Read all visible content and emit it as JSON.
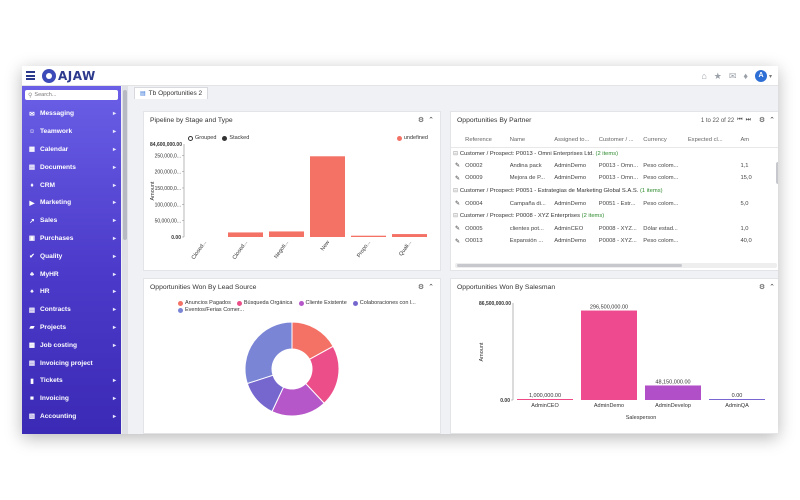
{
  "header": {
    "app_name": "AJAW",
    "avatar_letter": "A",
    "icons": [
      "home-icon",
      "star-icon",
      "mail-icon",
      "bell-icon",
      "user-avatar"
    ]
  },
  "sidebar": {
    "search_placeholder": "Search...",
    "items": [
      {
        "label": "Messaging",
        "icon": "message-icon"
      },
      {
        "label": "Teamwork",
        "icon": "team-icon"
      },
      {
        "label": "Calendar",
        "icon": "calendar-icon"
      },
      {
        "label": "Documents",
        "icon": "document-icon"
      },
      {
        "label": "CRM",
        "icon": "crm-icon"
      },
      {
        "label": "Marketing",
        "icon": "megaphone-icon"
      },
      {
        "label": "Sales",
        "icon": "chart-icon"
      },
      {
        "label": "Purchases",
        "icon": "cart-icon"
      },
      {
        "label": "Quality",
        "icon": "check-icon"
      },
      {
        "label": "MyHR",
        "icon": "person-icon"
      },
      {
        "label": "HR",
        "icon": "people-icon"
      },
      {
        "label": "Contracts",
        "icon": "contract-icon"
      },
      {
        "label": "Projects",
        "icon": "folder-icon"
      },
      {
        "label": "Job costing",
        "icon": "calculator-icon"
      },
      {
        "label": "Invoicing project",
        "icon": "invoice-icon"
      },
      {
        "label": "Tickets",
        "icon": "ticket-icon"
      },
      {
        "label": "Invoicing",
        "icon": "money-icon"
      },
      {
        "label": "Accounting",
        "icon": "ledger-icon"
      }
    ]
  },
  "tab": {
    "label": "Tb Opportunities 2"
  },
  "pipeline": {
    "title": "Pipeline by Stage and Type",
    "legend": {
      "grouped": "Grouped",
      "stacked": "Stacked",
      "series": "undefined"
    },
    "series_color": "#f47166"
  },
  "partner": {
    "title": "Opportunities By Partner",
    "pager": "1 to 22 of 22",
    "columns": [
      "Reference",
      "Name",
      "Assigned to...",
      "Customer / ...",
      "Currency",
      "Expected cl...",
      "Am"
    ],
    "rows": [
      {
        "type": "group",
        "label": "Customer / Prospect: P0013 - Omni Enterprises Ltd.",
        "count": "(2 items)"
      },
      {
        "type": "row",
        "cells": [
          "O0002",
          "Andina pack",
          "AdminDemo",
          "P0013 - Omn...",
          "Peso colom...",
          "",
          "1,1"
        ]
      },
      {
        "type": "row",
        "cells": [
          "O0009",
          "Mejora de P...",
          "AdminDemo",
          "P0013 - Omn...",
          "Peso colom...",
          "",
          "15,0"
        ]
      },
      {
        "type": "group",
        "label": "Customer / Prospect: P0051 - Estrategias de Marketing Global S.A.S.",
        "count": "(1 items)"
      },
      {
        "type": "row",
        "cells": [
          "O0004",
          "Campaña di...",
          "AdminDemo",
          "P0051 - Estr...",
          "Peso colom...",
          "",
          "5,0"
        ]
      },
      {
        "type": "group",
        "label": "Customer / Prospect: P0008 - XYZ Enterprises",
        "count": "(2 items)"
      },
      {
        "type": "row",
        "cells": [
          "O0005",
          "clientes pot...",
          "AdminCEO",
          "P0008 - XYZ...",
          "Dólar estad...",
          "",
          "1,0"
        ]
      },
      {
        "type": "row",
        "cells": [
          "O0013",
          "Expansión ...",
          "AdminDemo",
          "P0008 - XYZ...",
          "Peso colom...",
          "",
          "40,0"
        ]
      }
    ]
  },
  "lead_source": {
    "title": "Opportunities Won By Lead Source"
  },
  "salesman": {
    "title": "Opportunities Won By Salesman"
  },
  "chart_data": [
    {
      "type": "bar",
      "title": "Pipeline by Stage and Type",
      "xlabel": "",
      "ylabel": "Amount",
      "ymax_label": "84,600,000.00",
      "categories": [
        "Closed...",
        "Closed...",
        "Negoti...",
        "New",
        "Propo...",
        "Quali..."
      ],
      "values": [
        0,
        14000000,
        17000000,
        247000000,
        4000000,
        9000000
      ],
      "ylim": [
        0,
        284600000
      ],
      "yticks": [
        0,
        50000000,
        100000000,
        150000000,
        200000000,
        250000000
      ],
      "ytick_labels": [
        "0.00",
        "50,000,00...",
        "100,000,0...",
        "150,000,0...",
        "200,000,0...",
        "250,000,0..."
      ],
      "series": [
        {
          "name": "undefined"
        }
      ]
    },
    {
      "type": "pie",
      "title": "Opportunities Won By Lead Source",
      "labels": [
        "Anuncios Pagados",
        "Búsqueda Orgánica",
        "Cliente Existente",
        "Colaboraciones con l...",
        "Eventos/Ferias Comer..."
      ],
      "values": [
        17,
        21,
        19,
        13,
        30
      ],
      "colors": [
        "#f47166",
        "#ec4e8a",
        "#b556c9",
        "#7667cf",
        "#7b85d6"
      ]
    },
    {
      "type": "bar",
      "title": "Opportunities Won By Salesman",
      "xlabel": "Salesperson",
      "ylabel": "Amount",
      "ymax_label": "86,500,000.00",
      "categories": [
        "AdminCEO",
        "AdminDemo",
        "AdminDevelop",
        "AdminQA"
      ],
      "values": [
        1000000,
        296500000,
        48150000,
        0
      ],
      "value_labels": [
        "1,000,000.00",
        "296,500,000.00",
        "48,150,000.00",
        "0.00"
      ],
      "ylim": [
        0,
        321500000
      ],
      "yticks": [
        0
      ],
      "ytick_labels": [
        "0.00"
      ],
      "colors": [
        "#f04a86",
        "#ee4a8f",
        "#b04fc7",
        "#7a66d2"
      ]
    }
  ]
}
